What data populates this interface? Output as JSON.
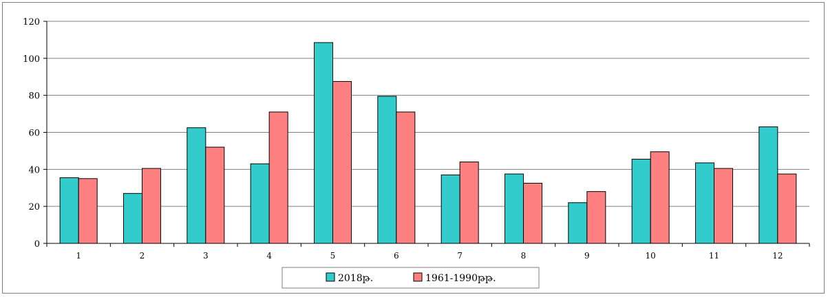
{
  "chart_data": {
    "type": "bar",
    "categories": [
      "1",
      "2",
      "3",
      "4",
      "5",
      "6",
      "7",
      "8",
      "9",
      "10",
      "11",
      "12"
    ],
    "series": [
      {
        "name": "2018թ.",
        "color": "#33cccc",
        "values": [
          35.5,
          27,
          62.5,
          43,
          108.5,
          79.5,
          37,
          37.5,
          22,
          45.5,
          43.5,
          63
        ]
      },
      {
        "name": "1961-1990թթ.",
        "color": "#ff8080",
        "values": [
          35,
          40.5,
          52,
          71,
          87.5,
          71,
          44,
          32.5,
          28,
          49.5,
          40.5,
          37.5
        ]
      }
    ],
    "yticks": [
      "0",
      "20",
      "40",
      "60",
      "80",
      "100",
      "120"
    ],
    "ylim": [
      0,
      120
    ],
    "grid": true,
    "legend_position": "bottom-center"
  }
}
